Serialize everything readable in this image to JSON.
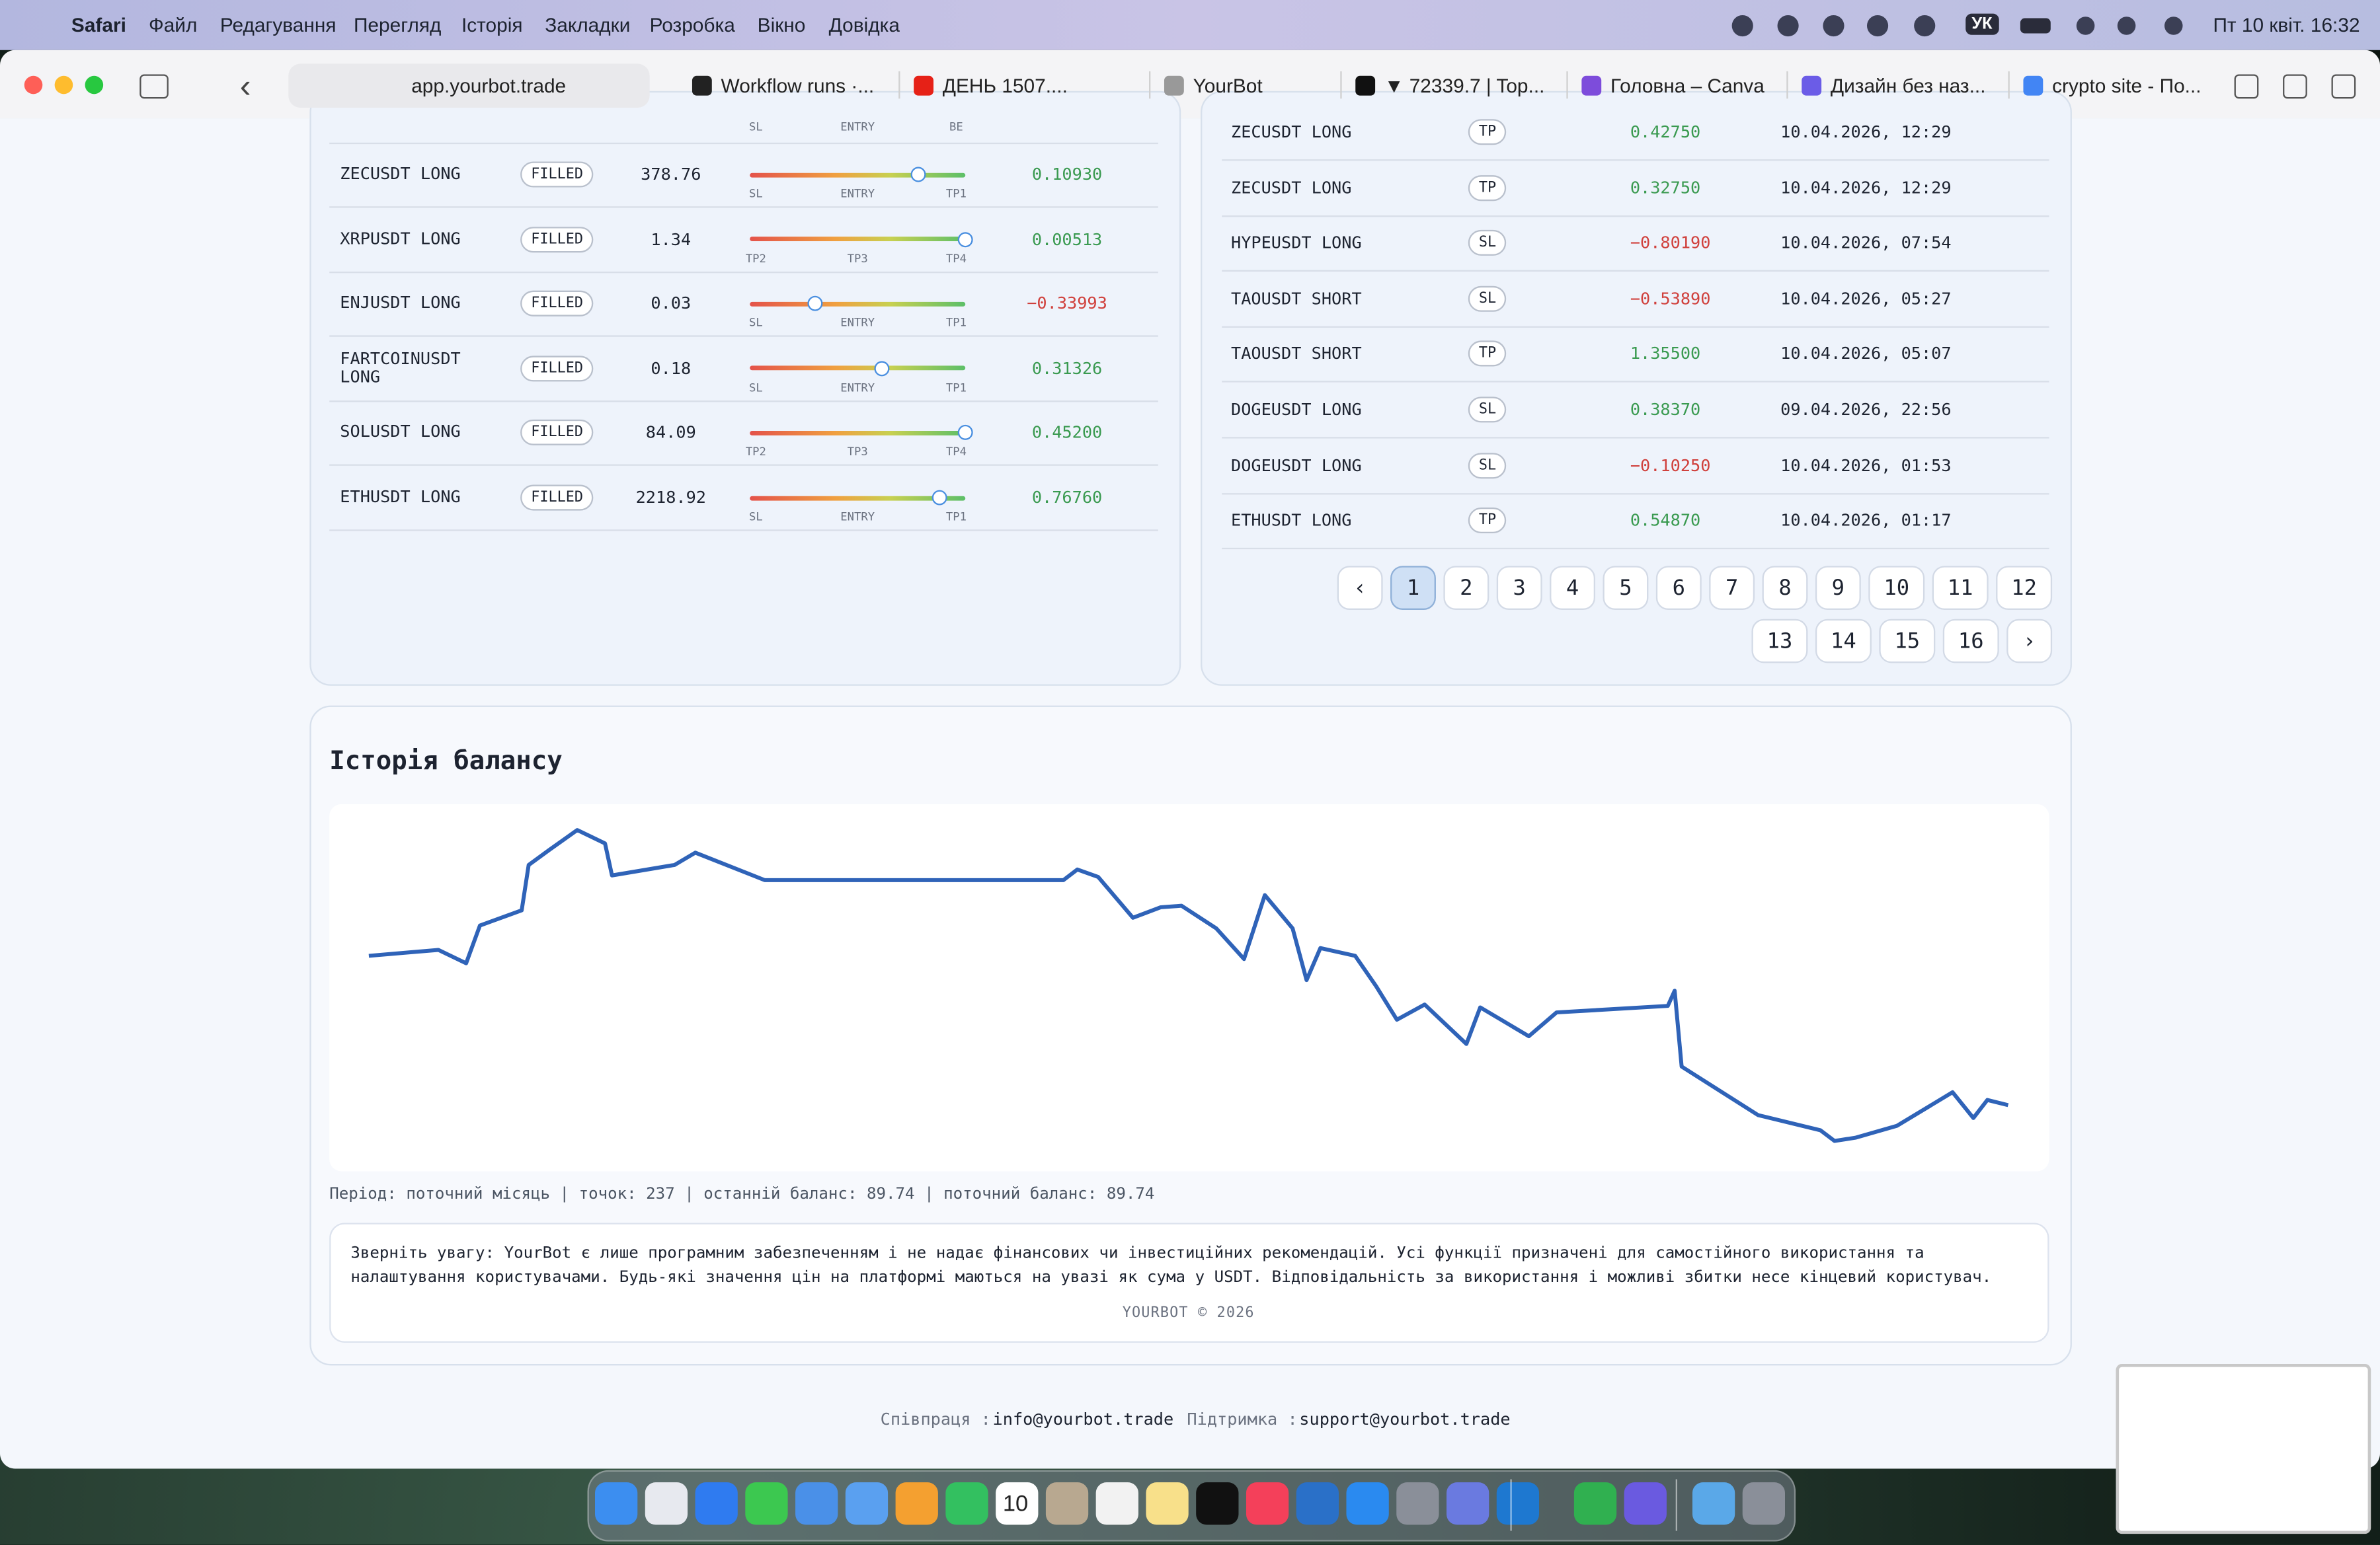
{
  "menubar": {
    "app": "Safari",
    "menus": [
      "Файл",
      "Редагування",
      "Перегляд",
      "Історія",
      "Закладки",
      "Розробка",
      "Вікно",
      "Довідка"
    ],
    "lang": "УК",
    "clock": "Пт 10 квіт.  16:32"
  },
  "browser": {
    "address": "app.yourbot.trade",
    "tabs": [
      "Workflow runs ·...",
      "ДЕНЬ 1507....",
      "YourBot",
      "▼ 72339.7 | Top...",
      "Головна – Canva",
      "Дизайн без наз...",
      "crypto site - По..."
    ]
  },
  "positions": {
    "top_labels": [
      "SL",
      "ENTRY",
      "BE"
    ],
    "rows": [
      {
        "symbol": "ZECUSDT LONG",
        "status": "FILLED",
        "price": "378.76",
        "labels": [
          "SL",
          "ENTRY",
          "TP1"
        ],
        "progress": 0.78,
        "pnl": "0.10930"
      },
      {
        "symbol": "XRPUSDT LONG",
        "status": "FILLED",
        "price": "1.34",
        "labels": [
          "TP2",
          "TP3",
          "TP4"
        ],
        "progress": 1,
        "pnl": "0.00513"
      },
      {
        "symbol": "ENJUSDT LONG",
        "status": "FILLED",
        "price": "0.03",
        "labels": [
          "SL",
          "ENTRY",
          "TP1"
        ],
        "progress": 0.3,
        "pnl": "−0.33993"
      },
      {
        "symbol": "FARTCOINUSDT LONG",
        "status": "FILLED",
        "price": "0.18",
        "labels": [
          "SL",
          "ENTRY",
          "TP1"
        ],
        "progress": 0.61,
        "pnl": "0.31326"
      },
      {
        "symbol": "SOLUSDT LONG",
        "status": "FILLED",
        "price": "84.09",
        "labels": [
          "TP2",
          "TP3",
          "TP4"
        ],
        "progress": 1,
        "pnl": "0.45200"
      },
      {
        "symbol": "ETHUSDT LONG",
        "status": "FILLED",
        "price": "2218.92",
        "labels": [
          "SL",
          "ENTRY",
          "TP1"
        ],
        "progress": 0.88,
        "pnl": "0.76760"
      }
    ]
  },
  "history": {
    "rows": [
      {
        "symbol": "ZECUSDT LONG",
        "kind": "TP",
        "pnl": "0.42750",
        "time": "10.04.2026, 12:29"
      },
      {
        "symbol": "ZECUSDT LONG",
        "kind": "TP",
        "pnl": "0.32750",
        "time": "10.04.2026, 12:29"
      },
      {
        "symbol": "HYPEUSDT LONG",
        "kind": "SL",
        "pnl": "−0.80190",
        "time": "10.04.2026, 07:54"
      },
      {
        "symbol": "TAOUSDT SHORT",
        "kind": "SL",
        "pnl": "−0.53890",
        "time": "10.04.2026, 05:27"
      },
      {
        "symbol": "TAOUSDT SHORT",
        "kind": "TP",
        "pnl": "1.35500",
        "time": "10.04.2026, 05:07"
      },
      {
        "symbol": "DOGEUSDT LONG",
        "kind": "SL",
        "pnl": "0.38370",
        "time": "09.04.2026, 22:56"
      },
      {
        "symbol": "DOGEUSDT LONG",
        "kind": "SL",
        "pnl": "−0.10250",
        "time": "10.04.2026, 01:53"
      },
      {
        "symbol": "ETHUSDT LONG",
        "kind": "TP",
        "pnl": "0.54870",
        "time": "10.04.2026, 01:17"
      }
    ],
    "pagination": {
      "prev": "‹",
      "pages": [
        1,
        2,
        3,
        4,
        5,
        6,
        7,
        8,
        9,
        10,
        11,
        12,
        13,
        14,
        15,
        16
      ],
      "next": "›",
      "current": 1
    }
  },
  "chart_data": {
    "type": "line",
    "title": "Історія балансу",
    "color": "#2f63b8",
    "x": [
      0,
      10,
      14,
      16,
      22,
      23,
      26,
      30,
      34,
      35,
      44,
      47,
      57,
      100,
      102,
      105,
      110,
      114,
      117,
      122,
      126,
      129,
      133,
      135,
      137,
      142,
      145,
      148,
      152,
      158,
      160,
      163,
      167,
      171,
      187,
      188,
      189,
      200,
      209,
      211,
      214,
      220,
      228,
      231,
      233,
      236
    ],
    "values": [
      94.96,
      95.17,
      94.7,
      96.02,
      96.55,
      98.14,
      98.67,
      99.36,
      98.89,
      97.77,
      98.14,
      98.57,
      97.61,
      97.61,
      97.98,
      97.72,
      96.29,
      96.66,
      96.71,
      95.92,
      94.85,
      97.08,
      95.92,
      94.11,
      95.23,
      94.96,
      93.9,
      92.73,
      93.26,
      91.88,
      93.16,
      92.73,
      92.15,
      92.98,
      93.21,
      93.74,
      91.09,
      89.39,
      88.86,
      88.49,
      88.6,
      89.02,
      90.19,
      89.29,
      89.92,
      89.74
    ],
    "xlim": [
      0,
      236
    ],
    "ylim": [
      87.8,
      100
    ]
  },
  "balance": {
    "info": "Період: поточний місяць | точок: 237 | останній баланс: 89.74 | поточний баланс: 89.74",
    "disclaimer": [
      "Зверніть увагу: YourBot є лише програмним забезпеченням і не надає фінансових чи інвестиційних рекомендацій. Усі функції призначені для самостійного використання та",
      "налаштування користувачами. Будь-які значення цін на платформі маються на увазі як сума у USDT. Відповідальність за використання і можливі збитки несе кінцевий користувач."
    ],
    "copyright": "YOURBOT © 2026"
  },
  "footer": {
    "coop_label": "Співпраця :",
    "coop_email": "info@yourbot.trade",
    "support_label": "Підтримка :",
    "support_email": "support@yourbot.trade"
  },
  "dock": {
    "calendar_day": "10"
  }
}
